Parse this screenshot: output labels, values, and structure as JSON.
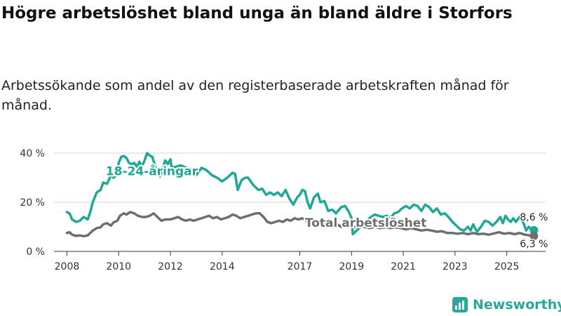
{
  "title": "Högre arbetslöshet bland unga än bland äldre i Storfors",
  "subtitle": "Arbetssökande som andel av den registerbaserade arbetskraften månad för månad.",
  "brand": {
    "name": "Newsworthy",
    "color": "#2aa69a"
  },
  "chart_data": {
    "type": "line",
    "title": "Högre arbetslöshet bland unga än bland äldre i Storfors",
    "xlabel": "",
    "ylabel": "",
    "xlim": [
      2007.5,
      2026.5
    ],
    "ylim": [
      0,
      40
    ],
    "grid": true,
    "y_ticks": [
      {
        "value": 0,
        "label": "0 %"
      },
      {
        "value": 20,
        "label": "20 %"
      },
      {
        "value": 40,
        "label": "40 %"
      }
    ],
    "x_ticks": [
      {
        "value": 2008,
        "label": "2008"
      },
      {
        "value": 2010,
        "label": "2010"
      },
      {
        "value": 2012,
        "label": "2012"
      },
      {
        "value": 2014,
        "label": "2014"
      },
      {
        "value": 2017,
        "label": "2017"
      },
      {
        "value": 2019,
        "label": "2019"
      },
      {
        "value": 2021,
        "label": "2021"
      },
      {
        "value": 2023,
        "label": "2023"
      },
      {
        "value": 2025,
        "label": "2025"
      }
    ],
    "series": [
      {
        "name": "18-24-åringar",
        "color": "#1fa896",
        "last_value_label": "8,6 %",
        "points": [
          [
            2008.0,
            16
          ],
          [
            2008.1,
            15.5
          ],
          [
            2008.2,
            13
          ],
          [
            2008.35,
            12
          ],
          [
            2008.5,
            12.5
          ],
          [
            2008.65,
            14
          ],
          [
            2008.8,
            13
          ],
          [
            2008.9,
            16
          ],
          [
            2009.0,
            20
          ],
          [
            2009.15,
            24
          ],
          [
            2009.3,
            25
          ],
          [
            2009.4,
            28
          ],
          [
            2009.55,
            27.5
          ],
          [
            2009.7,
            31
          ],
          [
            2009.8,
            30
          ],
          [
            2009.95,
            31.5
          ],
          [
            2010.0,
            36
          ],
          [
            2010.1,
            38.5
          ],
          [
            2010.2,
            38.8
          ],
          [
            2010.3,
            38
          ],
          [
            2010.4,
            36
          ],
          [
            2010.5,
            35.5
          ],
          [
            2010.6,
            36
          ],
          [
            2010.7,
            34.5
          ],
          [
            2010.8,
            36.5
          ],
          [
            2010.9,
            34.5
          ],
          [
            2011.0,
            37
          ],
          [
            2011.1,
            40
          ],
          [
            2011.2,
            39
          ],
          [
            2011.3,
            38.5
          ],
          [
            2011.4,
            35
          ],
          [
            2011.5,
            32
          ],
          [
            2011.6,
            30.5
          ],
          [
            2011.7,
            34
          ],
          [
            2011.8,
            37
          ],
          [
            2011.9,
            35.5
          ],
          [
            2012.0,
            37.5
          ],
          [
            2012.05,
            34
          ],
          [
            2012.4,
            35
          ],
          [
            2012.6,
            34
          ],
          [
            2012.8,
            33.5
          ],
          [
            2013.0,
            31
          ],
          [
            2013.2,
            34
          ],
          [
            2013.4,
            33
          ],
          [
            2013.6,
            31
          ],
          [
            2013.8,
            30
          ],
          [
            2014.0,
            28.5
          ],
          [
            2014.2,
            30
          ],
          [
            2014.4,
            32
          ],
          [
            2014.5,
            31.5
          ],
          [
            2014.6,
            25
          ],
          [
            2014.75,
            29
          ],
          [
            2014.9,
            30
          ],
          [
            2015.0,
            30
          ],
          [
            2015.2,
            27
          ],
          [
            2015.4,
            25
          ],
          [
            2015.55,
            25.5
          ],
          [
            2015.7,
            23
          ],
          [
            2015.85,
            24
          ],
          [
            2016.0,
            23
          ],
          [
            2016.15,
            24
          ],
          [
            2016.3,
            22.5
          ],
          [
            2016.45,
            25
          ],
          [
            2016.6,
            21.5
          ],
          [
            2016.75,
            19
          ],
          [
            2016.9,
            22
          ],
          [
            2017.0,
            23
          ],
          [
            2017.1,
            25
          ],
          [
            2017.2,
            24.5
          ],
          [
            2017.3,
            20
          ],
          [
            2017.4,
            17.5
          ],
          [
            2017.55,
            22
          ],
          [
            2017.7,
            23.5
          ],
          [
            2017.8,
            20
          ],
          [
            2017.95,
            20.5
          ],
          [
            2018.1,
            16.5
          ],
          [
            2018.25,
            17
          ],
          [
            2018.4,
            15.5
          ],
          [
            2018.6,
            18
          ],
          [
            2018.75,
            18.5
          ],
          [
            2018.9,
            16
          ],
          [
            2019.0,
            13.5
          ],
          [
            2019.05,
            7
          ],
          [
            2019.6,
            12.5
          ],
          [
            2019.75,
            14
          ],
          [
            2019.9,
            15
          ],
          [
            2020.05,
            14.5
          ],
          [
            2020.2,
            14
          ],
          [
            2020.35,
            14.5
          ],
          [
            2020.5,
            13.5
          ],
          [
            2020.65,
            15.5
          ],
          [
            2020.8,
            16
          ],
          [
            2020.95,
            17.5
          ],
          [
            2021.1,
            18.5
          ],
          [
            2021.25,
            17.5
          ],
          [
            2021.4,
            19
          ],
          [
            2021.55,
            18.5
          ],
          [
            2021.7,
            16.5
          ],
          [
            2021.85,
            19
          ],
          [
            2022.0,
            18
          ],
          [
            2022.15,
            16
          ],
          [
            2022.3,
            17.5
          ],
          [
            2022.45,
            15
          ],
          [
            2022.6,
            15.5
          ],
          [
            2022.75,
            14
          ],
          [
            2022.9,
            12
          ],
          [
            2023.0,
            11
          ],
          [
            2023.2,
            9
          ],
          [
            2023.35,
            8.5
          ],
          [
            2023.5,
            10
          ],
          [
            2023.6,
            8.5
          ],
          [
            2023.7,
            11
          ],
          [
            2023.85,
            8
          ],
          [
            2024.0,
            10
          ],
          [
            2024.15,
            12.5
          ],
          [
            2024.3,
            12
          ],
          [
            2024.45,
            10.5
          ],
          [
            2024.6,
            12
          ],
          [
            2024.75,
            14
          ],
          [
            2024.85,
            11.5
          ],
          [
            2024.95,
            14.5
          ],
          [
            2025.05,
            13
          ],
          [
            2025.15,
            12
          ],
          [
            2025.25,
            13.5
          ],
          [
            2025.35,
            12
          ],
          [
            2025.5,
            14
          ],
          [
            2025.65,
            11.5
          ],
          [
            2025.75,
            8.5
          ],
          [
            2025.85,
            10
          ],
          [
            2025.95,
            9
          ],
          [
            2026.05,
            8.6
          ]
        ]
      },
      {
        "name": "Total arbetslöshet",
        "color": "#6e6e6e",
        "last_value_label": "6,3 %",
        "points": [
          [
            2008.0,
            7.5
          ],
          [
            2008.1,
            7.8
          ],
          [
            2008.2,
            6.8
          ],
          [
            2008.35,
            6.3
          ],
          [
            2008.5,
            6.5
          ],
          [
            2008.65,
            6.2
          ],
          [
            2008.8,
            6.5
          ],
          [
            2008.9,
            7.5
          ],
          [
            2009.0,
            8.5
          ],
          [
            2009.15,
            9.5
          ],
          [
            2009.3,
            9.8
          ],
          [
            2009.4,
            11
          ],
          [
            2009.55,
            11.5
          ],
          [
            2009.7,
            10.5
          ],
          [
            2009.8,
            11.8
          ],
          [
            2009.95,
            12.5
          ],
          [
            2010.05,
            14.5
          ],
          [
            2010.2,
            15.5
          ],
          [
            2010.3,
            15
          ],
          [
            2010.45,
            16
          ],
          [
            2010.6,
            15.5
          ],
          [
            2010.75,
            14.5
          ],
          [
            2010.9,
            14
          ],
          [
            2011.05,
            14
          ],
          [
            2011.2,
            14.5
          ],
          [
            2011.35,
            15.5
          ],
          [
            2011.5,
            14
          ],
          [
            2011.65,
            12.5
          ],
          [
            2011.8,
            13
          ],
          [
            2012.0,
            13
          ],
          [
            2012.15,
            13.5
          ],
          [
            2012.3,
            14
          ],
          [
            2012.45,
            13
          ],
          [
            2012.6,
            12.5
          ],
          [
            2012.75,
            13
          ],
          [
            2012.9,
            12.5
          ],
          [
            2013.05,
            13
          ],
          [
            2013.2,
            13.5
          ],
          [
            2013.35,
            14
          ],
          [
            2013.5,
            14.5
          ],
          [
            2013.65,
            13.5
          ],
          [
            2013.8,
            14
          ],
          [
            2013.95,
            13
          ],
          [
            2014.1,
            13.5
          ],
          [
            2014.25,
            14
          ],
          [
            2014.4,
            15
          ],
          [
            2014.55,
            14.5
          ],
          [
            2014.7,
            13.5
          ],
          [
            2014.85,
            14
          ],
          [
            2015.0,
            14.5
          ],
          [
            2015.15,
            15
          ],
          [
            2015.3,
            15.5
          ],
          [
            2015.45,
            15.5
          ],
          [
            2015.6,
            14
          ],
          [
            2015.75,
            12
          ],
          [
            2015.9,
            11.5
          ],
          [
            2016.05,
            12
          ],
          [
            2016.2,
            12.5
          ],
          [
            2016.35,
            12
          ],
          [
            2016.5,
            13
          ],
          [
            2016.65,
            12.5
          ],
          [
            2016.8,
            13.5
          ],
          [
            2016.95,
            13
          ],
          [
            2017.1,
            13.5
          ],
          [
            2017.25,
            12.5
          ],
          [
            2017.4,
            13
          ],
          [
            2017.55,
            11.5
          ],
          [
            2017.7,
            12.5
          ],
          [
            2017.85,
            11
          ],
          [
            2018.0,
            11.5
          ],
          [
            2018.15,
            11
          ],
          [
            2018.3,
            10.5
          ],
          [
            2018.45,
            11
          ],
          [
            2018.6,
            10
          ],
          [
            2018.75,
            10.5
          ],
          [
            2018.9,
            10
          ],
          [
            2019.05,
            10
          ],
          [
            2019.2,
            9.8
          ],
          [
            2019.35,
            10.2
          ],
          [
            2019.5,
            10
          ],
          [
            2019.7,
            9.5
          ],
          [
            2019.9,
            10
          ],
          [
            2020.1,
            9.5
          ],
          [
            2020.3,
            9.8
          ],
          [
            2020.5,
            9.5
          ],
          [
            2020.7,
            9.8
          ],
          [
            2020.9,
            9.5
          ],
          [
            2021.1,
            9
          ],
          [
            2021.3,
            9.5
          ],
          [
            2021.5,
            9
          ],
          [
            2021.7,
            8.5
          ],
          [
            2021.9,
            8.8
          ],
          [
            2022.1,
            8.5
          ],
          [
            2022.3,
            8
          ],
          [
            2022.5,
            8.2
          ],
          [
            2022.7,
            7.5
          ],
          [
            2022.9,
            7.5
          ],
          [
            2023.1,
            7.2
          ],
          [
            2023.3,
            7.5
          ],
          [
            2023.5,
            7
          ],
          [
            2023.7,
            7.5
          ],
          [
            2023.9,
            7
          ],
          [
            2024.1,
            7.2
          ],
          [
            2024.3,
            6.8
          ],
          [
            2024.5,
            7.3
          ],
          [
            2024.7,
            7.8
          ],
          [
            2024.9,
            7.2
          ],
          [
            2025.1,
            7.5
          ],
          [
            2025.3,
            7
          ],
          [
            2025.5,
            7.5
          ],
          [
            2025.7,
            6.8
          ],
          [
            2025.9,
            6.5
          ],
          [
            2026.05,
            6.3
          ]
        ]
      }
    ]
  }
}
